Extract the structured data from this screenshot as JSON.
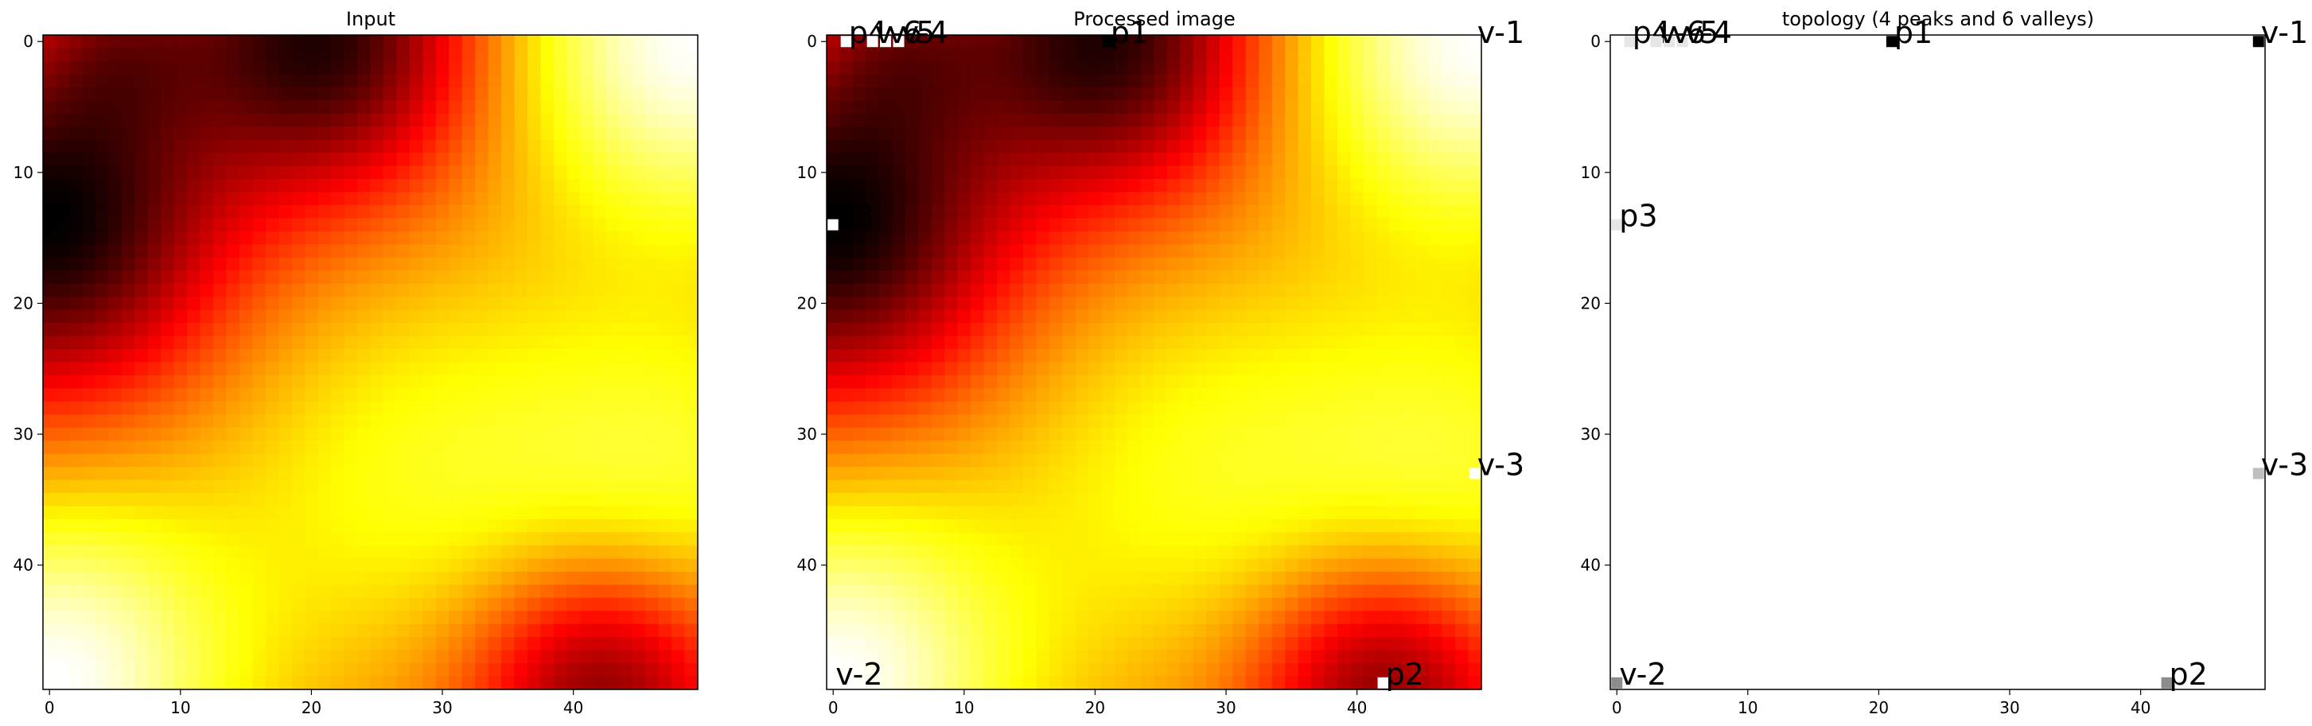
{
  "chart_data": [
    {
      "type": "heatmap",
      "title": "Input",
      "colormap": "hot",
      "grid_size": [
        50,
        50
      ],
      "xlim": [
        -0.5,
        49.5
      ],
      "ylim": [
        49.5,
        -0.5
      ],
      "xticks": [
        0,
        10,
        20,
        30,
        40
      ],
      "yticks": [
        0,
        10,
        20,
        30,
        40
      ],
      "field": {
        "base": 0.52,
        "components": [
          {
            "cx": 21,
            "cy": 0,
            "amp": -0.55,
            "sigma": 8
          },
          {
            "cx": 0,
            "cy": 14,
            "amp": -0.6,
            "sigma": 9
          },
          {
            "cx": 49,
            "cy": 0,
            "amp": 0.55,
            "sigma": 10
          },
          {
            "cx": 0,
            "cy": 49,
            "amp": 0.55,
            "sigma": 10
          },
          {
            "cx": 42,
            "cy": 49,
            "amp": -0.45,
            "sigma": 7
          },
          {
            "cx": 49,
            "cy": 33,
            "amp": 0.25,
            "sigma": 10
          },
          {
            "cx": 28,
            "cy": 33,
            "amp": 0.25,
            "sigma": 12
          },
          {
            "cx": 5,
            "cy": 0,
            "amp": -0.2,
            "sigma": 5
          }
        ]
      },
      "annotations": []
    },
    {
      "type": "heatmap",
      "title": "Processed image",
      "colormap": "hot",
      "grid_size": [
        50,
        50
      ],
      "xlim": [
        -0.5,
        49.5
      ],
      "ylim": [
        49.5,
        -0.5
      ],
      "xticks": [
        0,
        10,
        20,
        30,
        40
      ],
      "yticks": [
        0,
        10,
        20,
        30,
        40
      ],
      "field_from": 0,
      "annotations": [
        {
          "label": "p1",
          "x": 21,
          "y": 0,
          "marker": "#000000"
        },
        {
          "label": "p2",
          "x": 42,
          "y": 49,
          "marker": "#ffffff"
        },
        {
          "label": "p3",
          "x": 0,
          "y": 14,
          "marker": "#ffffff"
        },
        {
          "label": "p4",
          "x": 1,
          "y": 0,
          "marker": "#ffffff"
        },
        {
          "label": "v-1",
          "x": 49,
          "y": 0,
          "marker": "#ffffff"
        },
        {
          "label": "v-2",
          "x": 0,
          "y": 49,
          "marker": "#ffffff"
        },
        {
          "label": "v-3",
          "x": 49,
          "y": 33,
          "marker": "#ffffff"
        },
        {
          "label": "v-4",
          "x": 5,
          "y": 0,
          "marker": "#ffffff"
        },
        {
          "label": "v-5",
          "x": 4,
          "y": 0,
          "marker": "#ffffff"
        },
        {
          "label": "v-6",
          "x": 3,
          "y": 0,
          "marker": "#ffffff"
        }
      ]
    },
    {
      "type": "scatter",
      "title": "topology (4 peaks and 6 valleys)",
      "background": "#ffffff",
      "xlim": [
        -0.5,
        49.5
      ],
      "ylim": [
        49.5,
        -0.5
      ],
      "xticks": [
        0,
        10,
        20,
        30,
        40
      ],
      "yticks": [
        0,
        10,
        20,
        30,
        40
      ],
      "annotations": [
        {
          "label": "p1",
          "x": 21,
          "y": 0,
          "marker": "#000000"
        },
        {
          "label": "p2",
          "x": 42,
          "y": 49,
          "marker": "#8c8c8c"
        },
        {
          "label": "p3",
          "x": 0,
          "y": 14,
          "marker": "#e6e6e6"
        },
        {
          "label": "p4",
          "x": 1,
          "y": 0,
          "marker": "#e6e6e6"
        },
        {
          "label": "v-1",
          "x": 49,
          "y": 0,
          "marker": "#000000"
        },
        {
          "label": "v-2",
          "x": 0,
          "y": 49,
          "marker": "#8c8c8c"
        },
        {
          "label": "v-3",
          "x": 49,
          "y": 33,
          "marker": "#bfbfbf"
        },
        {
          "label": "v-4",
          "x": 5,
          "y": 0,
          "marker": "#e6e6e6"
        },
        {
          "label": "v-5",
          "x": 4,
          "y": 0,
          "marker": "#e6e6e6"
        },
        {
          "label": "v-6",
          "x": 3,
          "y": 0,
          "marker": "#e6e6e6"
        }
      ]
    }
  ]
}
